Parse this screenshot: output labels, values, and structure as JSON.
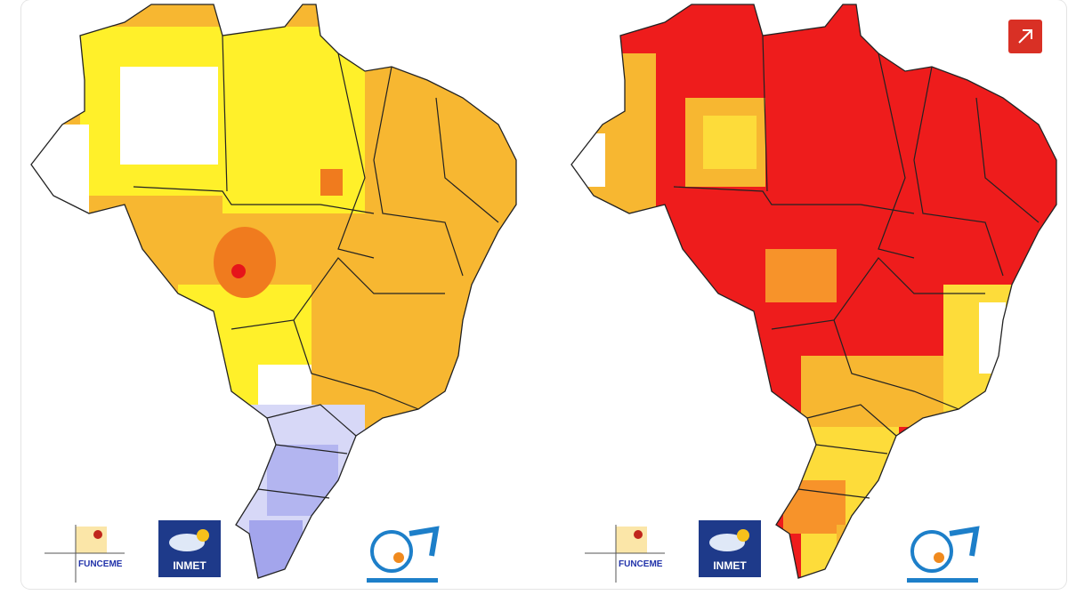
{
  "maps": [
    {
      "logos": {
        "funceme": "FUNCEME",
        "inmet": "INMET"
      }
    },
    {
      "logos": {
        "funceme": "FUNCEME",
        "inmet": "INMET"
      }
    }
  ]
}
